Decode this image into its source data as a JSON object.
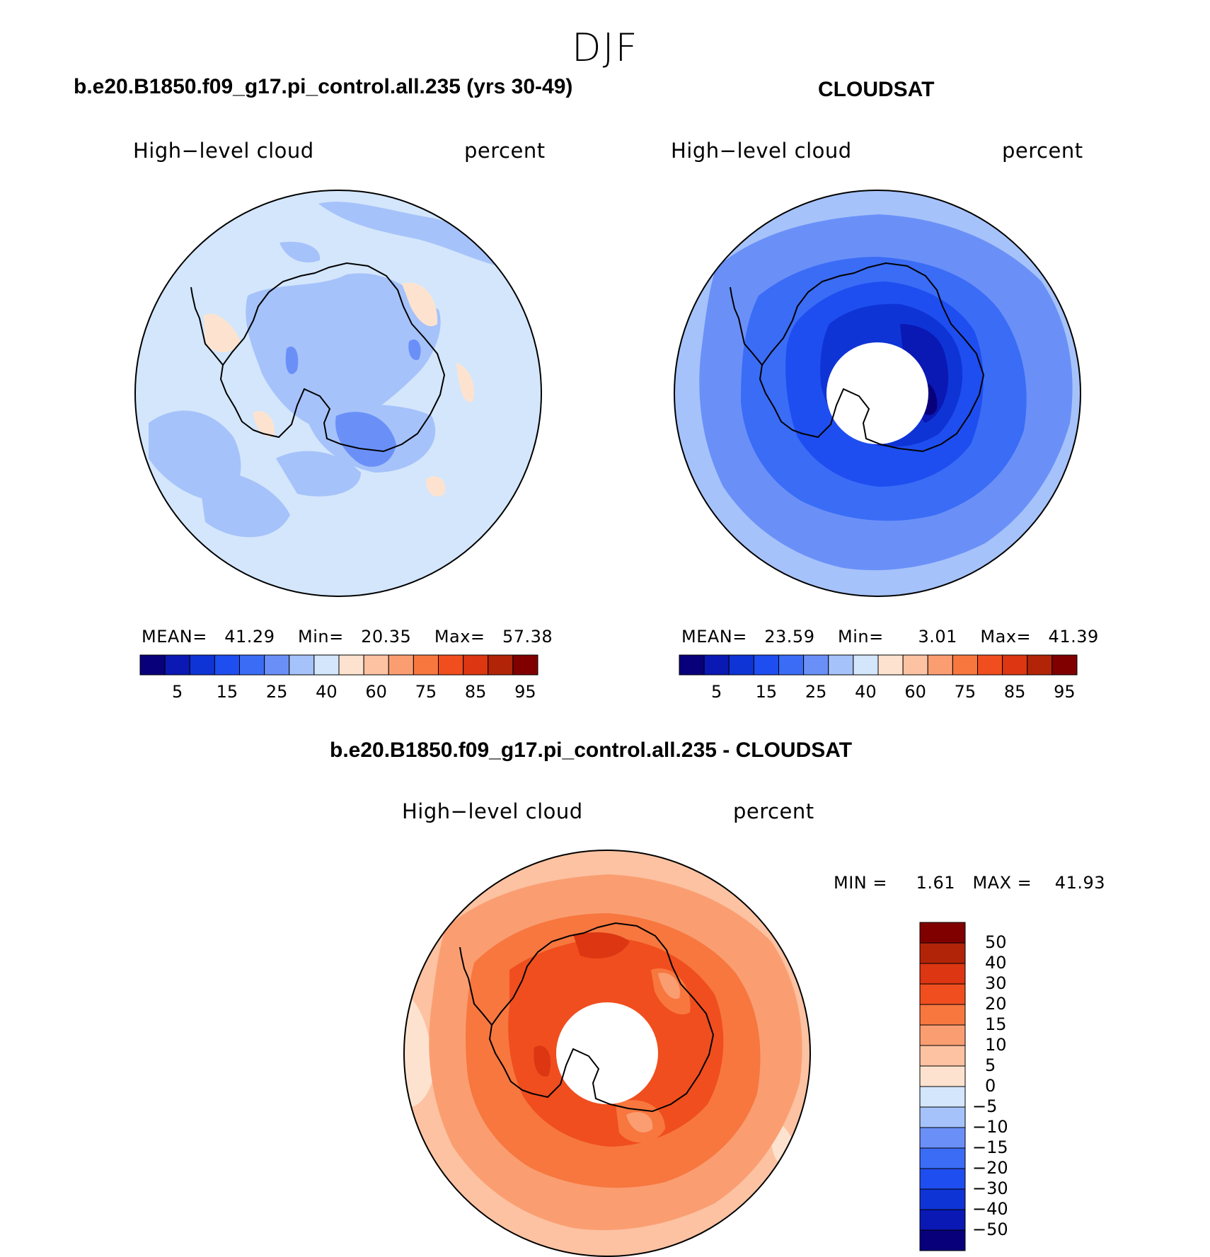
{
  "figure": {
    "season": "DJF",
    "panels": [
      {
        "title": "b.e20.B1850.f09_g17.pi_control.all.235 (yrs 30-49)",
        "variable": "High−level cloud",
        "units": "percent",
        "stats": {
          "mean_label": "MEAN=",
          "mean": "41.29",
          "min_label": "Min=",
          "min": "20.35",
          "max_label": "Max=",
          "max": "57.38"
        }
      },
      {
        "title": "CLOUDSAT",
        "variable": "High−level cloud",
        "units": "percent",
        "stats": {
          "mean_label": "MEAN=",
          "mean": "23.59",
          "min_label": "Min=",
          "min": "3.01",
          "max_label": "Max=",
          "max": "41.39"
        }
      }
    ],
    "colorbar": {
      "colors": [
        "#08007a",
        "#0a18b4",
        "#0f34d6",
        "#1e4ef0",
        "#3a6cf6",
        "#6a90f8",
        "#a6c2fa",
        "#d3e6fc",
        "#fde3cf",
        "#fcc2a2",
        "#fa9e72",
        "#f7773f",
        "#f04e1e",
        "#dc3612",
        "#b22408",
        "#800000"
      ],
      "tick_labels": [
        "5",
        "15",
        "25",
        "40",
        "60",
        "75",
        "85",
        "95"
      ]
    },
    "diff_panel": {
      "title": "b.e20.B1850.f09_g17.pi_control.all.235 - CLOUDSAT",
      "variable": "High−level cloud",
      "units": "percent",
      "min_label": "MIN =",
      "min": "1.61",
      "max_label": "MAX =",
      "max": "41.93",
      "colorbar": {
        "colors": [
          "#800000",
          "#b22408",
          "#dc3612",
          "#f04e1e",
          "#f7773f",
          "#fa9e72",
          "#fcc2a2",
          "#fde3cf",
          "#d3e6fc",
          "#a6c2fa",
          "#6a90f8",
          "#3a6cf6",
          "#1e4ef0",
          "#0f34d6",
          "#0a18b4",
          "#08007a"
        ],
        "tick_labels": [
          "50",
          "40",
          "30",
          "20",
          "15",
          "10",
          "5",
          "0",
          "−5",
          "−10",
          "−15",
          "−20",
          "−30",
          "−40",
          "−50"
        ]
      }
    }
  }
}
